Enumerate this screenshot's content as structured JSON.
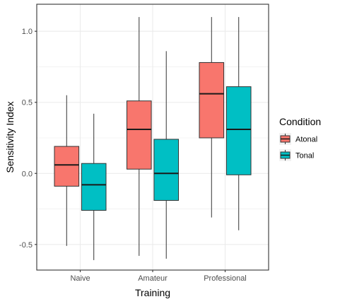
{
  "chart_data": {
    "type": "boxplot",
    "xlabel": "Training",
    "ylabel": "Sensitivity Index",
    "categories": [
      "Naive",
      "Amateur",
      "Professional"
    ],
    "ylim": [
      -0.68,
      1.19
    ],
    "yticks": [
      -0.5,
      0.0,
      0.5,
      1.0
    ],
    "ytick_labels": [
      "-0.5",
      "0.0",
      "0.5",
      "1.0"
    ],
    "grid": true,
    "legend": {
      "title": "Condition",
      "position": "right"
    },
    "series": [
      {
        "name": "Atonal",
        "color": "#F8766D",
        "boxes": [
          {
            "min": -0.51,
            "q1": -0.09,
            "median": 0.06,
            "q3": 0.19,
            "max": 0.55
          },
          {
            "min": -0.58,
            "q1": 0.03,
            "median": 0.31,
            "q3": 0.51,
            "max": 1.1
          },
          {
            "min": -0.31,
            "q1": 0.25,
            "median": 0.56,
            "q3": 0.78,
            "max": 1.1
          }
        ]
      },
      {
        "name": "Tonal",
        "color": "#00BFC4",
        "boxes": [
          {
            "min": -0.61,
            "q1": -0.26,
            "median": -0.08,
            "q3": 0.07,
            "max": 0.42
          },
          {
            "min": -0.6,
            "q1": -0.19,
            "median": 0.0,
            "q3": 0.24,
            "max": 0.86
          },
          {
            "min": -0.4,
            "q1": -0.01,
            "median": 0.31,
            "q3": 0.61,
            "max": 1.1
          }
        ]
      }
    ]
  }
}
